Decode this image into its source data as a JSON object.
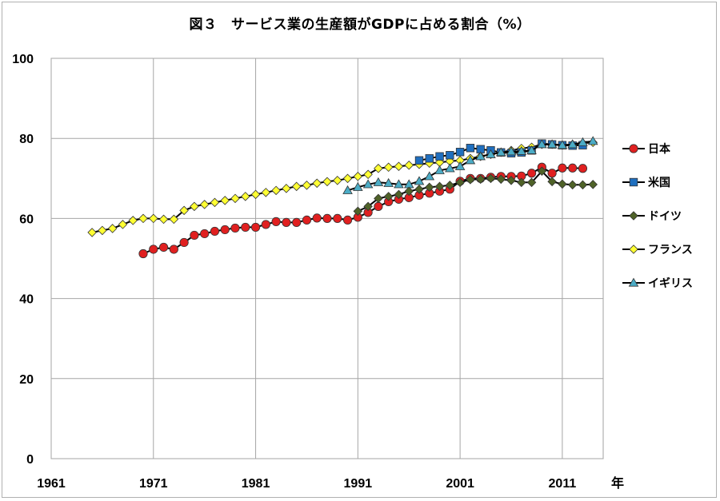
{
  "chart_data": {
    "type": "line",
    "title": "図３　サービス業の生産額がGDPに占める割合（%）",
    "xlabel": "年",
    "ylabel": "",
    "xlim": [
      1961,
      2015
    ],
    "ylim": [
      0,
      100
    ],
    "x_ticks": [
      1961,
      1971,
      1981,
      1991,
      2001,
      2011
    ],
    "x_tick_labels": [
      "1961",
      "1971",
      "1981",
      "1991",
      "2001",
      "2011"
    ],
    "y_ticks": [
      0,
      20,
      40,
      60,
      80,
      100
    ],
    "y_tick_labels": [
      "0",
      "20",
      "40",
      "60",
      "80",
      "100"
    ],
    "grid": true,
    "legend_position": "right",
    "series": [
      {
        "name": "日本",
        "color": "#e02020",
        "marker": "circle",
        "x": [
          1970,
          1971,
          1972,
          1973,
          1974,
          1975,
          1976,
          1977,
          1978,
          1979,
          1980,
          1981,
          1982,
          1983,
          1984,
          1985,
          1986,
          1987,
          1988,
          1989,
          1990,
          1991,
          1992,
          1993,
          1994,
          1995,
          1996,
          1997,
          1998,
          1999,
          2000,
          2001,
          2002,
          2003,
          2004,
          2005,
          2006,
          2007,
          2008,
          2009,
          2010,
          2011,
          2012,
          2013
        ],
        "y": [
          51.2,
          52.3,
          52.8,
          52.3,
          54.0,
          55.8,
          56.2,
          56.8,
          57.2,
          57.6,
          57.8,
          57.8,
          58.5,
          59.2,
          59.0,
          59.0,
          59.6,
          60.1,
          60.0,
          60.0,
          59.6,
          60.3,
          61.5,
          63.0,
          64.2,
          64.8,
          65.2,
          65.8,
          66.3,
          66.8,
          67.3,
          69.3,
          70.0,
          70.0,
          70.3,
          70.5,
          70.5,
          70.6,
          71.3,
          72.8,
          71.3,
          72.6,
          72.6,
          72.5
        ]
      },
      {
        "name": "米国",
        "color": "#1f6fbf",
        "marker": "square",
        "x": [
          1997,
          1998,
          1999,
          2000,
          2001,
          2002,
          2003,
          2004,
          2005,
          2006,
          2007,
          2008,
          2009,
          2010,
          2011,
          2012,
          2013
        ],
        "y": [
          74.5,
          75.0,
          75.5,
          75.8,
          76.6,
          77.6,
          77.3,
          77.0,
          76.5,
          76.3,
          76.5,
          77.0,
          78.7,
          78.5,
          78.3,
          78.2,
          78.3
        ]
      },
      {
        "name": "ドイツ",
        "color": "#4f6228",
        "marker": "diamond",
        "x": [
          1991,
          1992,
          1993,
          1994,
          1995,
          1996,
          1997,
          1998,
          1999,
          2000,
          2001,
          2002,
          2003,
          2004,
          2005,
          2006,
          2007,
          2008,
          2009,
          2010,
          2011,
          2012,
          2013,
          2014
        ],
        "y": [
          61.8,
          63.0,
          65.0,
          65.5,
          66.0,
          66.8,
          67.3,
          67.8,
          68.0,
          68.3,
          69.0,
          69.7,
          69.8,
          70.0,
          69.8,
          69.5,
          69.0,
          69.0,
          71.8,
          69.2,
          68.6,
          68.4,
          68.4,
          68.5
        ]
      },
      {
        "name": "フランス",
        "color": "#ffff33",
        "marker": "diamond",
        "x": [
          1965,
          1966,
          1967,
          1968,
          1969,
          1970,
          1971,
          1972,
          1973,
          1974,
          1975,
          1976,
          1977,
          1978,
          1979,
          1980,
          1981,
          1982,
          1983,
          1984,
          1985,
          1986,
          1987,
          1988,
          1989,
          1990,
          1991,
          1992,
          1993,
          1994,
          1995,
          1996,
          1997,
          1998,
          1999,
          2000,
          2001,
          2002,
          2003,
          2004,
          2005,
          2006,
          2007,
          2008,
          2009,
          2010,
          2011,
          2012,
          2013,
          2014
        ],
        "y": [
          56.5,
          57.0,
          57.5,
          58.5,
          59.5,
          60.0,
          60.0,
          59.8,
          59.8,
          62.0,
          63.0,
          63.5,
          64.0,
          64.5,
          65.0,
          65.5,
          66.0,
          66.5,
          67.0,
          67.5,
          68.0,
          68.3,
          68.8,
          69.2,
          69.5,
          70.0,
          70.5,
          71.0,
          72.5,
          72.8,
          73.0,
          73.3,
          73.5,
          73.8,
          74.0,
          74.3,
          74.5,
          75.0,
          75.5,
          76.0,
          76.5,
          77.0,
          77.5,
          77.8,
          78.5,
          78.5,
          78.3,
          78.5,
          78.8,
          79.0
        ]
      },
      {
        "name": "イギリス",
        "color": "#4bacc6",
        "marker": "triangle",
        "x": [
          1990,
          1991,
          1992,
          1993,
          1994,
          1995,
          1996,
          1997,
          1998,
          1999,
          2000,
          2001,
          2002,
          2003,
          2004,
          2005,
          2006,
          2007,
          2008,
          2009,
          2010,
          2011,
          2012,
          2013,
          2014
        ],
        "y": [
          67.0,
          67.8,
          68.5,
          69.0,
          68.8,
          68.5,
          68.5,
          69.3,
          70.5,
          72.0,
          72.5,
          73.0,
          74.5,
          75.5,
          76.0,
          76.5,
          76.7,
          76.8,
          77.0,
          78.5,
          78.5,
          78.3,
          78.5,
          79.0,
          79.3
        ]
      }
    ]
  }
}
